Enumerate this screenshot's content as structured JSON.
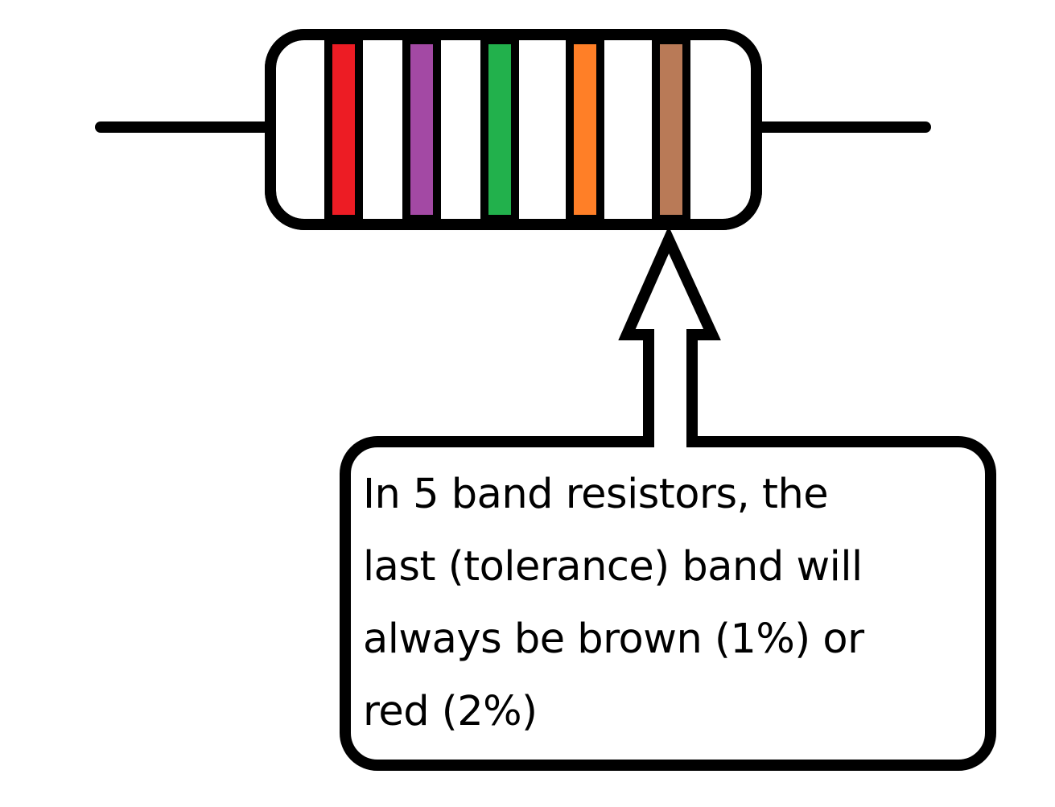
{
  "resistor": {
    "body_color": "#ffffff",
    "outline_color": "#000000",
    "bands": [
      {
        "name": "red",
        "color": "#ed1c24"
      },
      {
        "name": "purple",
        "color": "#a349a4"
      },
      {
        "name": "green",
        "color": "#22b14c"
      },
      {
        "name": "orange",
        "color": "#ff7f27"
      },
      {
        "name": "brown",
        "color": "#b97a57"
      }
    ]
  },
  "callout": {
    "lines": [
      "In 5 band resistors, the",
      "last (tolerance) band will",
      "always be brown (1%) or",
      "red (2%)"
    ]
  }
}
